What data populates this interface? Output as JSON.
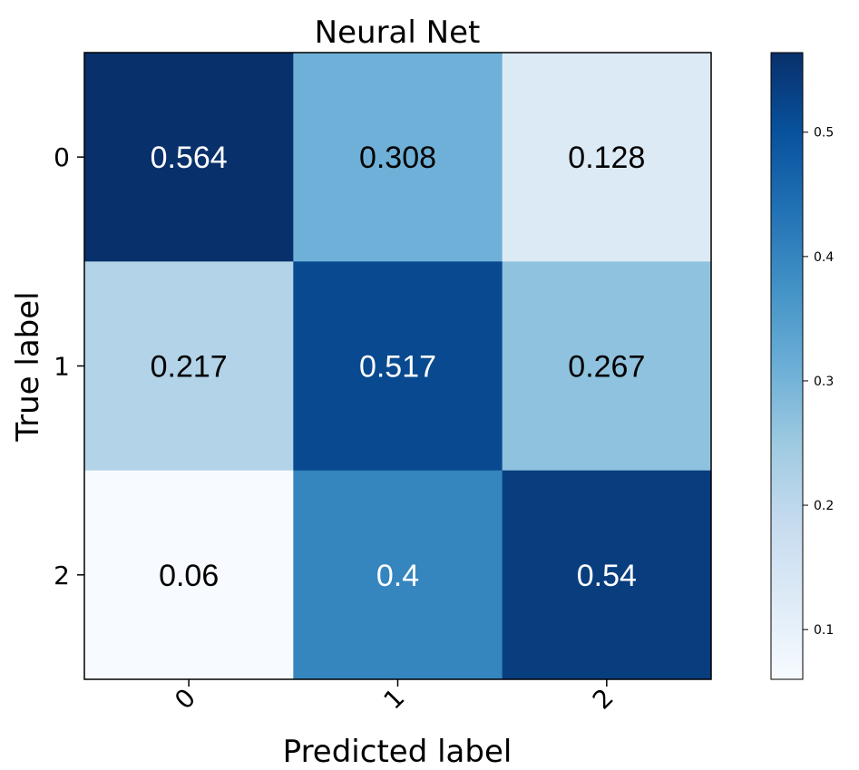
{
  "chart_data": {
    "type": "heatmap",
    "title": "Neural Net",
    "xlabel": "Predicted label",
    "ylabel": "True label",
    "x_categories": [
      "0",
      "1",
      "2"
    ],
    "y_categories": [
      "0",
      "1",
      "2"
    ],
    "values": [
      [
        0.564,
        0.308,
        0.128
      ],
      [
        0.217,
        0.517,
        0.267
      ],
      [
        0.06,
        0.4,
        0.54
      ]
    ],
    "cell_labels": [
      [
        "0.564",
        "0.308",
        "0.128"
      ],
      [
        "0.217",
        "0.517",
        "0.267"
      ],
      [
        "0.06",
        "0.4",
        "0.54"
      ]
    ],
    "colormap": "Blues",
    "colorbar": {
      "range": [
        0.06,
        0.564
      ],
      "ticks": [
        0.1,
        0.2,
        0.3,
        0.4,
        0.5
      ],
      "tick_labels": [
        "0.1",
        "0.2",
        "0.3",
        "0.4",
        "0.5"
      ]
    },
    "x_tick_rotation": "45°",
    "grid": false
  }
}
